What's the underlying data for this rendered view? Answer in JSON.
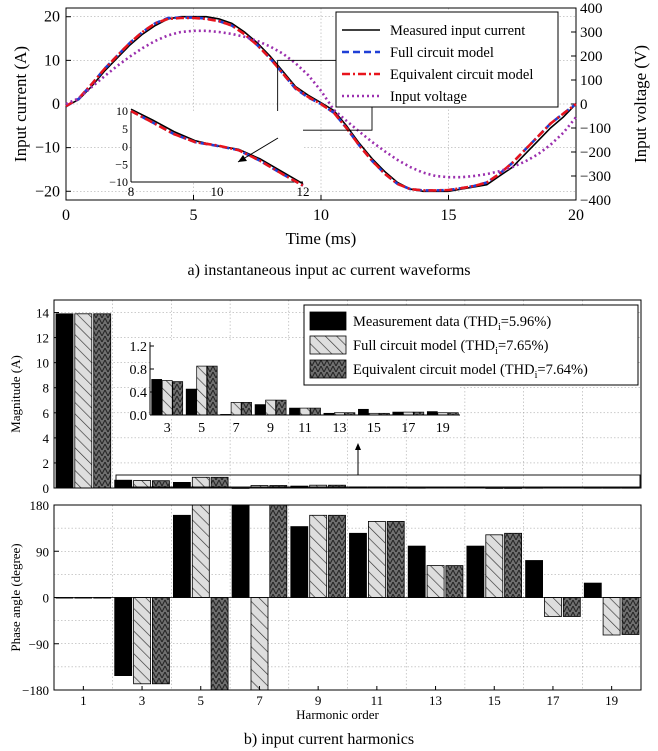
{
  "captions": {
    "a": "a) instantaneous input ac current waveforms",
    "b": "b) input current harmonics"
  },
  "chart_data": [
    {
      "type": "line",
      "xlabel": "Time (ms)",
      "ylabel": "Input current (A)",
      "y2label": "Input voltage (V)",
      "xlim": [
        0,
        20
      ],
      "ylim": [
        -22,
        22
      ],
      "y2lim": [
        -400,
        400
      ],
      "xticks": [
        0,
        5,
        10,
        15,
        20
      ],
      "yticks": [
        -20,
        -10,
        0,
        10,
        20
      ],
      "y2ticks": [
        -400,
        -300,
        -200,
        -100,
        0,
        100,
        200,
        300,
        400
      ],
      "grid": true,
      "legend": "top-right",
      "series": [
        {
          "name": "Measured input current",
          "color": "#000000",
          "style": "solid",
          "x": [
            0,
            0.5,
            1,
            1.5,
            2,
            2.5,
            3,
            3.5,
            4,
            4.5,
            5,
            5.5,
            6,
            6.5,
            7,
            7.5,
            8,
            8.5,
            9,
            9.5,
            10,
            10.5,
            11,
            11.5,
            12,
            12.5,
            13,
            13.5,
            14,
            14.5,
            15,
            15.5,
            16,
            16.5,
            17,
            17.5,
            18,
            18.5,
            19,
            19.5,
            20
          ],
          "y": [
            -0.5,
            1,
            4,
            7.5,
            10.5,
            13.5,
            16,
            18,
            19.5,
            20,
            20,
            20,
            19.5,
            18.5,
            16.5,
            14,
            11,
            7.5,
            4,
            2,
            0.3,
            -1.5,
            -5,
            -9,
            -12.5,
            -15.5,
            -18,
            -19.5,
            -20,
            -20,
            -20,
            -19.5,
            -19,
            -18.5,
            -16.5,
            -14.5,
            -11.5,
            -8.5,
            -5.5,
            -3,
            0
          ]
        },
        {
          "name": "Full circuit model",
          "color": "#1f3fd6",
          "style": "dash",
          "x": [
            0,
            0.5,
            1,
            1.5,
            2,
            2.5,
            3,
            3.5,
            4,
            4.5,
            5,
            5.5,
            6,
            6.5,
            7,
            7.5,
            8,
            8.5,
            9,
            9.5,
            10,
            10.5,
            11,
            11.5,
            12,
            12.5,
            13,
            13.5,
            14,
            14.5,
            15,
            15.5,
            16,
            16.5,
            17,
            17.5,
            18,
            18.5,
            19,
            19.5,
            20
          ],
          "y": [
            -0.5,
            1.2,
            4.5,
            8,
            11,
            14,
            16.5,
            18.5,
            19.7,
            19.8,
            19.8,
            19.6,
            19,
            18,
            16,
            13.5,
            10.5,
            7,
            3.5,
            1.5,
            0,
            -2,
            -5.5,
            -9.5,
            -13,
            -16,
            -18.3,
            -19.5,
            -19.8,
            -19.8,
            -19.7,
            -19.3,
            -18.8,
            -18,
            -16,
            -13.5,
            -10.5,
            -7.5,
            -4.5,
            -2.2,
            0
          ]
        },
        {
          "name": "Equivalent circuit model",
          "color": "#e8141c",
          "style": "dashdot",
          "x": [
            0,
            0.5,
            1,
            1.5,
            2,
            2.5,
            3,
            3.5,
            4,
            4.5,
            5,
            5.5,
            6,
            6.5,
            7,
            7.5,
            8,
            8.5,
            9,
            9.5,
            10,
            10.5,
            11,
            11.5,
            12,
            12.5,
            13,
            13.5,
            14,
            14.5,
            15,
            15.5,
            16,
            16.5,
            17,
            17.5,
            18,
            18.5,
            19,
            19.5,
            20
          ],
          "y": [
            -0.5,
            1.3,
            4.5,
            8,
            11,
            14,
            16.5,
            18.5,
            19.5,
            19.7,
            19.7,
            19.5,
            19,
            18,
            16,
            13.5,
            10.5,
            7,
            3.7,
            1.6,
            0,
            -2,
            -5.5,
            -9.5,
            -13,
            -16,
            -18.3,
            -19.5,
            -19.8,
            -19.8,
            -19.7,
            -19.3,
            -18.8,
            -18,
            -16,
            -13.5,
            -10.5,
            -7.5,
            -4.5,
            -2.2,
            0
          ]
        },
        {
          "name": "Input voltage",
          "color": "#9b2fae",
          "style": "dot",
          "axis": "y2",
          "x": [
            0,
            0.5,
            1,
            1.5,
            2,
            2.5,
            3,
            3.5,
            4,
            4.5,
            5,
            5.5,
            6,
            6.5,
            7,
            7.5,
            8,
            8.5,
            9,
            9.5,
            10,
            10.5,
            11,
            11.5,
            12,
            12.5,
            13,
            13.5,
            14,
            14.5,
            15,
            15.5,
            16,
            16.5,
            17,
            17.5,
            18,
            18.5,
            19,
            19.5,
            20
          ],
          "y": [
            0,
            24,
            70,
            115,
            158,
            197,
            233,
            263,
            286,
            300,
            305,
            305,
            300,
            292,
            280,
            263,
            240,
            210,
            170,
            120,
            55,
            -24,
            -70,
            -115,
            -158,
            -197,
            -233,
            -263,
            -286,
            -300,
            -305,
            -305,
            -300,
            -292,
            -280,
            -263,
            -240,
            -210,
            -170,
            -120,
            -55
          ]
        }
      ],
      "inset": {
        "xlim": [
          8,
          12
        ],
        "ylim": [
          -10,
          10
        ],
        "xticks": [
          8,
          10,
          12
        ],
        "yticks": [
          -10,
          -5,
          0,
          5,
          10
        ],
        "series": [
          {
            "name": "Measured input current",
            "x": [
              8,
              8.5,
              9,
              9.5,
              10,
              10.5,
              11,
              11.5,
              12
            ],
            "y": [
              10.5,
              7.5,
              4.2,
              1.6,
              0.2,
              -0.8,
              -3.5,
              -7,
              -10.5
            ]
          },
          {
            "name": "Full circuit model",
            "x": [
              8,
              8.5,
              9,
              9.5,
              10,
              10.5,
              11,
              11.5,
              12
            ],
            "y": [
              10,
              6.8,
              3.5,
              1.2,
              0.2,
              -1,
              -4,
              -7.6,
              -11
            ]
          },
          {
            "name": "Equivalent circuit model",
            "x": [
              8,
              8.5,
              9,
              9.5,
              10,
              10.5,
              11,
              11.5,
              12
            ],
            "y": [
              10,
              6.8,
              3.5,
              1.2,
              0.3,
              -1,
              -4,
              -7.6,
              -11
            ]
          }
        ]
      }
    },
    {
      "type": "bar",
      "xlabel": "Harmonic order",
      "categories": [
        "1",
        "3",
        "5",
        "7",
        "9",
        "11",
        "13",
        "15",
        "17",
        "19"
      ],
      "legend": "top-right",
      "grid": true,
      "magnitude": {
        "ylabel": "Magnitude (A)",
        "ylim": [
          0,
          15
        ],
        "yticks": [
          0,
          2,
          4,
          6,
          8,
          10,
          12,
          14
        ],
        "series": [
          {
            "name": "Measurement data (THD",
            "sub": "i",
            "post": "=5.96%)",
            "pattern": "solid",
            "values": [
              13.9,
              0.62,
              0.45,
              0.01,
              0.15,
              0.09,
              0.02,
              0.06,
              0.02,
              0.02
            ]
          },
          {
            "name": "Full circuit model (THD",
            "sub": "i",
            "post": "=7.65%)",
            "pattern": "light-hatch",
            "values": [
              13.9,
              0.6,
              0.85,
              0.2,
              0.22,
              0.09,
              0.03,
              0.01,
              0.03,
              0.02
            ]
          },
          {
            "name": "Equivalent circuit model (THD",
            "sub": "i",
            "post": "=7.64%)",
            "pattern": "dark-hatch",
            "values": [
              13.9,
              0.58,
              0.85,
              0.2,
              0.22,
              0.09,
              0.03,
              0.01,
              0.03,
              0.02
            ]
          }
        ]
      },
      "inset": {
        "ylim": [
          0,
          1.2
        ],
        "yticks": [
          0.0,
          0.4,
          0.8,
          1.2
        ],
        "categories": [
          "3",
          "5",
          "7",
          "9",
          "11",
          "13",
          "15",
          "17",
          "19"
        ],
        "series": [
          [
            0.62,
            0.45,
            0.01,
            0.18,
            0.12,
            0.03,
            0.1,
            0.05,
            0.06
          ],
          [
            0.6,
            0.85,
            0.22,
            0.26,
            0.12,
            0.04,
            0.03,
            0.05,
            0.04
          ],
          [
            0.58,
            0.85,
            0.22,
            0.26,
            0.12,
            0.04,
            0.03,
            0.05,
            0.04
          ]
        ]
      },
      "phase": {
        "ylabel": "Phase angle (degree)",
        "ylim": [
          -180,
          180
        ],
        "yticks": [
          -180,
          -90,
          0,
          90,
          180
        ],
        "series": [
          {
            "values": [
              0,
              -152,
              160,
              180,
              138,
              125,
              100,
              100,
              72,
              28
            ]
          },
          {
            "values": [
              0,
              -168,
              180,
              -180,
              160,
              148,
              62,
              122,
              -37,
              -73
            ]
          },
          {
            "values": [
              0,
              -168,
              -180,
              180,
              160,
              148,
              62,
              125,
              -37,
              -72
            ]
          }
        ]
      }
    }
  ]
}
